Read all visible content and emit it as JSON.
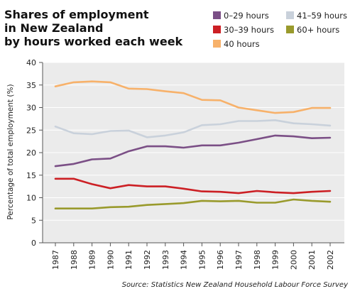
{
  "chart_data": {
    "type": "line",
    "title_lines": [
      "Shares of employment",
      "in New Zealand",
      "by hours worked each week"
    ],
    "ylabel": "Percentage of total employment (%)",
    "xlabel": "",
    "source": "Source: Statistics New Zealand Household Labour Force Survey",
    "ylim": [
      0,
      40
    ],
    "yticks": [
      0,
      5,
      10,
      15,
      20,
      25,
      30,
      35,
      40
    ],
    "grid": "horizontal",
    "legend_position": "top-right",
    "x": [
      "1987",
      "1988",
      "1989",
      "1990",
      "1991",
      "1992",
      "1993",
      "1994",
      "1995",
      "1996",
      "1997",
      "1998",
      "1999",
      "2000",
      "2001",
      "2002"
    ],
    "series": [
      {
        "name": "0–29 hours",
        "color": "#7b4f86",
        "values": [
          17.0,
          17.5,
          18.5,
          18.7,
          20.3,
          21.4,
          21.4,
          21.1,
          21.6,
          21.6,
          22.2,
          23.0,
          23.8,
          23.6,
          23.2,
          23.3
        ]
      },
      {
        "name": "41–59 hours",
        "color": "#c9d1db",
        "values": [
          25.8,
          24.3,
          24.1,
          24.8,
          24.9,
          23.4,
          23.8,
          24.5,
          26.1,
          26.3,
          27.0,
          27.0,
          27.2,
          26.5,
          26.3,
          26.0
        ]
      },
      {
        "name": "30–39 hours",
        "color": "#cc1f24",
        "values": [
          14.2,
          14.2,
          13.0,
          12.1,
          12.8,
          12.5,
          12.5,
          12.0,
          11.4,
          11.3,
          11.0,
          11.5,
          11.2,
          11.0,
          11.3,
          11.5
        ]
      },
      {
        "name": "60+ hours",
        "color": "#999a2c",
        "values": [
          7.6,
          7.6,
          7.6,
          7.9,
          8.0,
          8.4,
          8.6,
          8.8,
          9.3,
          9.2,
          9.3,
          8.9,
          8.9,
          9.6,
          9.3,
          9.1
        ]
      },
      {
        "name": "40 hours",
        "color": "#f7b16a",
        "values": [
          34.7,
          35.6,
          35.8,
          35.6,
          34.2,
          34.1,
          33.6,
          33.2,
          31.7,
          31.6,
          30.0,
          29.4,
          28.8,
          29.0,
          29.9,
          29.9
        ]
      }
    ]
  }
}
